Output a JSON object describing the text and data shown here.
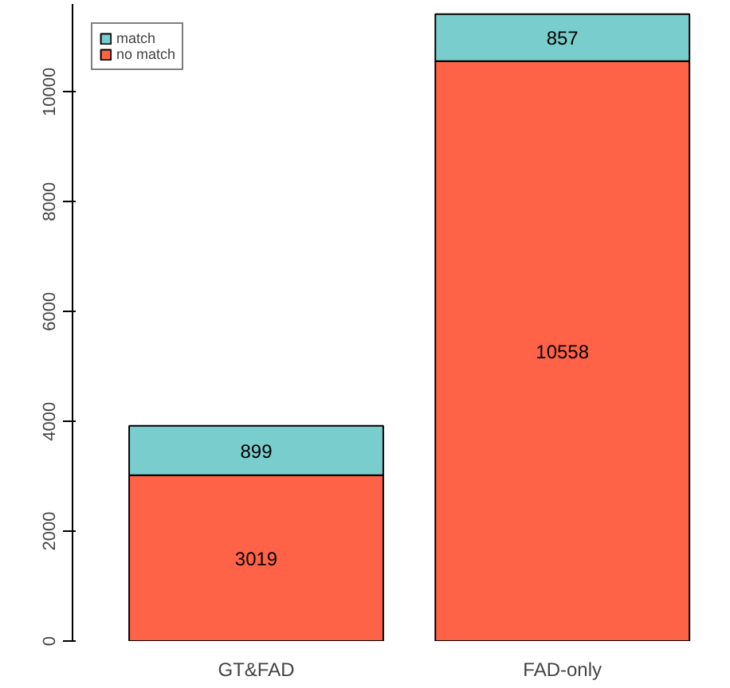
{
  "chart_data": {
    "type": "bar",
    "stacked": true,
    "categories": [
      "GT&FAD",
      "FAD-only"
    ],
    "series": [
      {
        "name": "no match",
        "color": "#ff6347",
        "values": [
          3019,
          10558
        ]
      },
      {
        "name": "match",
        "color": "#79cdcd",
        "values": [
          899,
          857
        ]
      }
    ],
    "ylim": [
      0,
      11600
    ],
    "yticks": [
      0,
      2000,
      4000,
      6000,
      8000,
      10000
    ],
    "data_labels": true,
    "grid": false,
    "legend": "top left"
  }
}
